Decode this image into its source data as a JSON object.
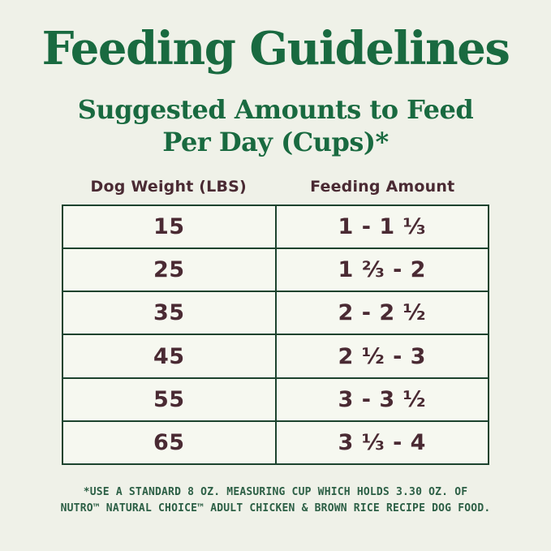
{
  "colors": {
    "background": "#eff1e8",
    "cell_background": "#f6f8f0",
    "title_green": "#196a40",
    "table_border_green": "#1c432e",
    "table_text_maroon": "#4a2a33",
    "footnote_green": "#2c5f45"
  },
  "header": {
    "title": "Feeding Guidelines",
    "subtitle_line1": "Suggested Amounts to Feed",
    "subtitle_line2": "Per Day (Cups)*"
  },
  "table": {
    "columns": [
      "Dog Weight (LBS)",
      "Feeding Amount"
    ],
    "rows": [
      {
        "weight": "15",
        "amount": "1 - 1 ⅓"
      },
      {
        "weight": "25",
        "amount": "1 ⅔ - 2"
      },
      {
        "weight": "35",
        "amount": "2 - 2 ½"
      },
      {
        "weight": "45",
        "amount": "2 ½ - 3"
      },
      {
        "weight": "55",
        "amount": "3 - 3 ½"
      },
      {
        "weight": "65",
        "amount": "3 ⅓ - 4"
      }
    ]
  },
  "footnote": {
    "line1": "*USE A STANDARD 8 OZ. MEASURING CUP WHICH HOLDS 3.30 OZ. OF",
    "line2": "NUTRO™ NATURAL CHOICE™ ADULT CHICKEN & BROWN RICE RECIPE DOG FOOD."
  },
  "chart_data": {
    "type": "table",
    "title": "Feeding Guidelines",
    "subtitle": "Suggested Amounts to Feed Per Day (Cups)*",
    "columns": [
      "Dog Weight (LBS)",
      "Feeding Amount"
    ],
    "rows": [
      [
        "15",
        "1 - 1⅓"
      ],
      [
        "25",
        "1⅔ - 2"
      ],
      [
        "35",
        "2 - 2½"
      ],
      [
        "45",
        "2½ - 3"
      ],
      [
        "55",
        "3 - 3½"
      ],
      [
        "65",
        "3⅓ - 4"
      ]
    ],
    "dog_weight_lbs": [
      15,
      25,
      35,
      45,
      55,
      65
    ],
    "feeding_amount_cups_min_max": [
      [
        1,
        1.333
      ],
      [
        1.667,
        2
      ],
      [
        2,
        2.5
      ],
      [
        2.5,
        3
      ],
      [
        3,
        3.5
      ],
      [
        3.333,
        4
      ]
    ],
    "footnote": "*USE A STANDARD 8 OZ. MEASURING CUP WHICH HOLDS 3.30 OZ. OF NUTRO™ NATURAL CHOICE™ ADULT CHICKEN & BROWN RICE RECIPE DOG FOOD."
  }
}
